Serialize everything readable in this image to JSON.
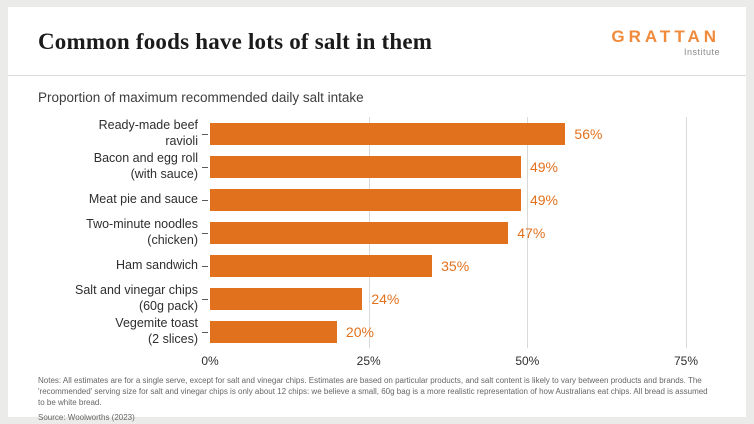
{
  "header": {
    "title": "Common foods have lots of salt in them",
    "logo": {
      "name": "GRATTAN",
      "sub": "Institute"
    }
  },
  "subtitle": "Proportion of maximum recommended daily salt intake",
  "chart_data": {
    "type": "bar",
    "orientation": "horizontal",
    "title": "Common foods have lots of salt in them",
    "subtitle": "Proportion of maximum recommended daily salt intake",
    "categories": [
      "Ready-made beef\nravioli",
      "Bacon and egg roll\n(with sauce)",
      "Meat pie and sauce",
      "Two-minute noodles\n(chicken)",
      "Ham sandwich",
      "Salt and vinegar chips\n(60g pack)",
      "Vegemite toast\n(2 slices)"
    ],
    "values": [
      56,
      49,
      49,
      47,
      35,
      24,
      20
    ],
    "value_labels": [
      "56%",
      "49%",
      "49%",
      "47%",
      "35%",
      "24%",
      "20%"
    ],
    "xlim": [
      0,
      75
    ],
    "ticks": [
      0,
      25,
      50,
      75
    ],
    "tick_labels": [
      "0%",
      "25%",
      "50%",
      "75%"
    ],
    "grid": "vertical gridlines at 25, 50, 75",
    "legend": "none"
  },
  "footer": {
    "notes": "Notes: All estimates are for a single serve, except for salt and vinegar chips. Estimates are based on particular products, and salt content is likely to vary between products and brands. The 'recommended' serving size for salt and vinegar chips is only about 12 chips: we believe a small, 60g bag is a more realistic representation of how Australians eat chips. All bread is assumed to be white bread.",
    "source": "Source: Woolworths (2023)"
  },
  "colors": {
    "accent": "#e2711d",
    "logo_orange": "#f18a3b",
    "grid": "#d9d9d9",
    "background": "#ebecea"
  }
}
